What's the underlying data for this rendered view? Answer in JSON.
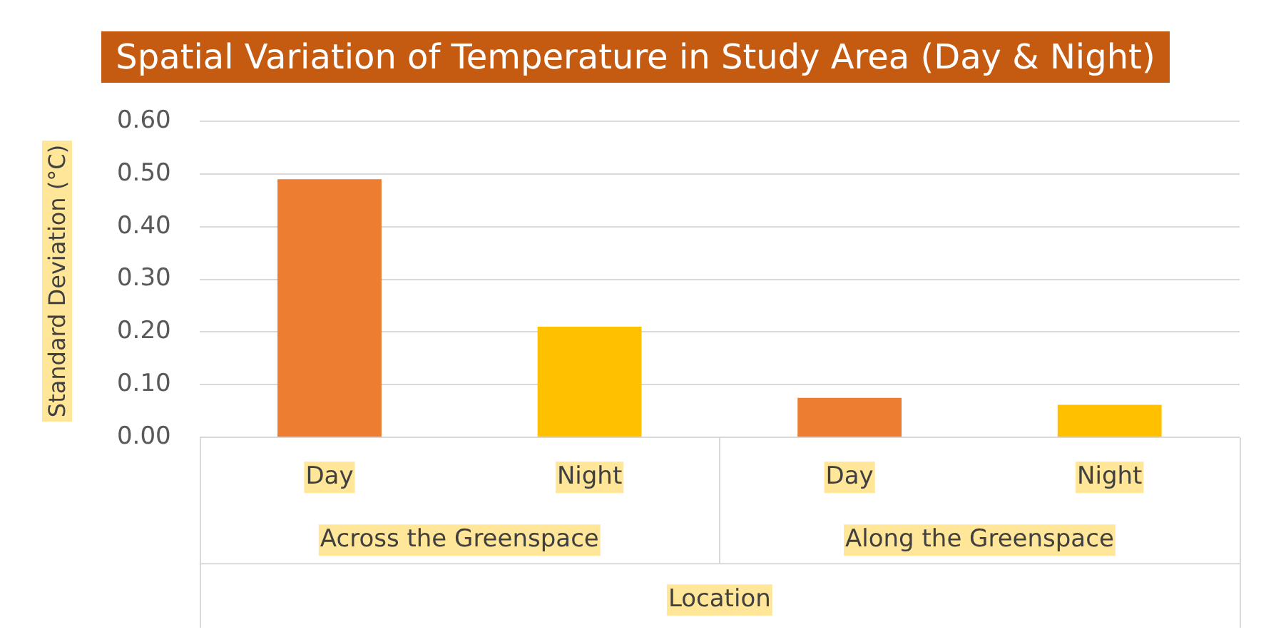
{
  "chart_data": {
    "type": "bar",
    "title": "Spatial Variation of Temperature in Study Area (Day & Night)",
    "xlabel": "Location",
    "ylabel": "Standard Deviation (°C)",
    "categories": [
      "Day",
      "Night",
      "Day",
      "Night"
    ],
    "values": [
      0.49,
      0.21,
      0.075,
      0.062
    ],
    "colors": [
      "#ed7d31",
      "#ffc000",
      "#ed7d31",
      "#ffc000"
    ],
    "annotations": [
      "Across the Greenspace",
      "Along the Greenspace"
    ],
    "ylim": [
      0,
      0.6
    ],
    "yticks": [
      {
        "value": 0,
        "label": "0.00"
      },
      {
        "value": 0.1,
        "label": "0.10"
      },
      {
        "value": 0.2,
        "label": "0.20"
      },
      {
        "value": 0.3,
        "label": "0.30"
      },
      {
        "value": 0.4,
        "label": "0.40"
      },
      {
        "value": 0.5,
        "label": "0.50"
      },
      {
        "value": 0.6,
        "label": "0.60"
      }
    ],
    "grid": "y",
    "legend": false
  }
}
